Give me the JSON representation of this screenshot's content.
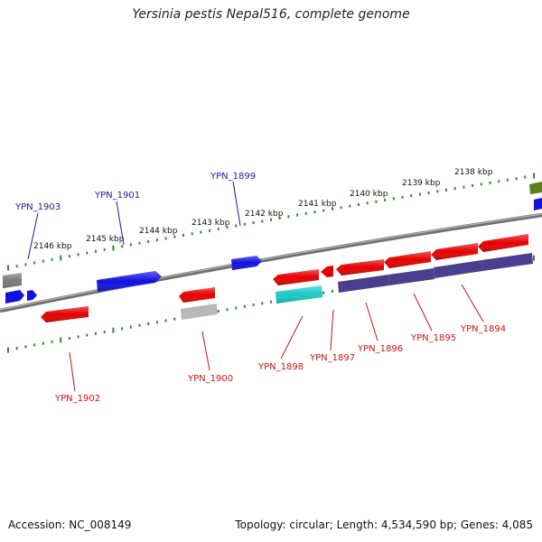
{
  "title": "Yersinia pestis Nepal516, complete genome",
  "footer": {
    "accession": "Accession: NC_008149",
    "summary": "Topology: circular; Length: 4,534,590 bp; Genes: 4,085"
  },
  "colors": {
    "backbone": "#8a8a8a",
    "scale_ticks": "#2e8b2e",
    "label_forward": "#1a1aa0",
    "label_reverse": "#cc1111",
    "gene_blue": "#1010e0",
    "gene_red": "#e50000",
    "gene_gray": "#7a7a7a",
    "gene_lightgray": "#b8b8b8",
    "gene_cyan": "#19c8c8",
    "gene_purple": "#4a3f8c",
    "gene_olive": "#5e7e1e"
  },
  "scale_labels": [
    "2146 kbp",
    "2145 kbp",
    "2144 kbp",
    "2143 kbp",
    "2142 kbp",
    "2141 kbp",
    "2140 kbp",
    "2139 kbp",
    "2138 kbp"
  ],
  "gene_labels_forward": [
    "YPN_1903",
    "YPN_1901",
    "YPN_1899"
  ],
  "gene_labels_reverse": [
    "YPN_1902",
    "YPN_1900",
    "YPN_1898",
    "YPN_1897",
    "YPN_1896",
    "YPN_1895",
    "YPN_1894"
  ]
}
